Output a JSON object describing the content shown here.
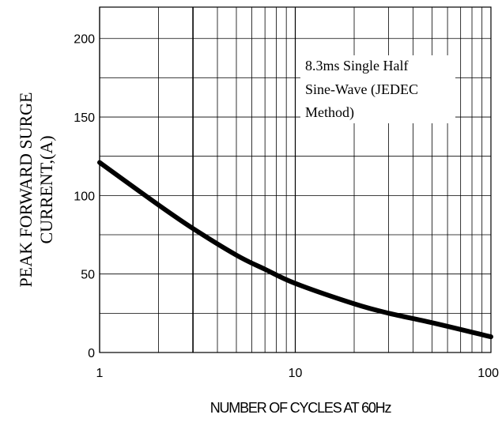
{
  "chart_data": {
    "type": "line",
    "xscale": "log",
    "xlim": [
      1,
      100
    ],
    "ylim": [
      0,
      220
    ],
    "grid": true,
    "xlabel": "NUMBER OF CYCLES AT 60Hz",
    "ylabel_lines": [
      "PEAK FORWARD SURGE",
      "CURRENT,(A)"
    ],
    "x_ticks": [
      1,
      10,
      100
    ],
    "y_ticks": [
      0,
      50,
      100,
      150,
      200
    ],
    "x_tick_labels": [
      "1",
      "10",
      "100"
    ],
    "y_tick_labels": [
      "0",
      "50",
      "100",
      "150",
      "200"
    ],
    "annotation_lines": [
      "8.3ms Single Half",
      "Sine-Wave (JEDEC",
      "Method)"
    ],
    "series": [
      {
        "x": [
          1,
          2,
          3,
          5,
          7,
          10,
          20,
          30,
          50,
          100
        ],
        "y": [
          121,
          94,
          79,
          62,
          53,
          44,
          31,
          25,
          19,
          10
        ]
      }
    ],
    "color": "#000000"
  }
}
